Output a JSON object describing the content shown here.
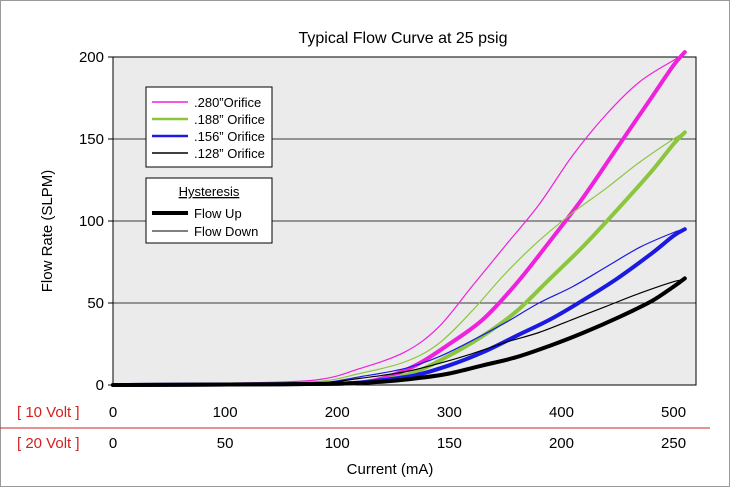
{
  "chart_data": {
    "type": "line",
    "title": "Typical Flow Curve at 25 psig",
    "xlabel": "Current (mA)",
    "ylabel": "Flow Rate (SLPM)",
    "xlim": [
      0,
      520
    ],
    "ylim": [
      0,
      200
    ],
    "grid": "horizontal",
    "plot_background": "#ebebeb",
    "x_ticks": [
      0,
      100,
      200,
      300,
      400,
      500
    ],
    "y_ticks": [
      0,
      50,
      100,
      150,
      200
    ],
    "secondary_axes": [
      {
        "label": "[ 10 Volt ]",
        "ticks": [
          "0",
          "100",
          "200",
          "300",
          "400",
          "500"
        ],
        "color": "#d32020"
      },
      {
        "label": "[ 20 Volt ]",
        "ticks": [
          "0",
          "50",
          "100",
          "150",
          "200",
          "250"
        ],
        "color": "#d32020"
      }
    ],
    "legend_orifice": {
      "position": "top-left",
      "entries": [
        {
          "label": ".280”Orifice",
          "color": "#ee22dd"
        },
        {
          "label": ".188” Orifice",
          "color": "#8cc63f"
        },
        {
          "label": ".156” Orifice",
          "color": "#1a1ae0"
        },
        {
          "label": ".128” Orifice",
          "color": "#000000"
        }
      ]
    },
    "legend_hysteresis": {
      "title": "Hysteresis",
      "entries": [
        {
          "label": "Flow Up",
          "style": "thick"
        },
        {
          "label": "Flow Down",
          "style": "thin"
        }
      ]
    },
    "series": [
      {
        "orifice": ".280",
        "direction": "down",
        "color": "#ee22dd",
        "points": [
          [
            0,
            0
          ],
          [
            100,
            1
          ],
          [
            180,
            3
          ],
          [
            220,
            10
          ],
          [
            260,
            20
          ],
          [
            290,
            35
          ],
          [
            320,
            60
          ],
          [
            350,
            85
          ],
          [
            380,
            110
          ],
          [
            410,
            140
          ],
          [
            440,
            165
          ],
          [
            470,
            185
          ],
          [
            500,
            198
          ],
          [
            510,
            202
          ]
        ]
      },
      {
        "orifice": ".280",
        "direction": "up",
        "color": "#ee22dd",
        "points": [
          [
            0,
            0
          ],
          [
            150,
            0.5
          ],
          [
            210,
            1
          ],
          [
            240,
            4
          ],
          [
            270,
            12
          ],
          [
            300,
            25
          ],
          [
            330,
            40
          ],
          [
            360,
            62
          ],
          [
            390,
            88
          ],
          [
            420,
            115
          ],
          [
            450,
            145
          ],
          [
            480,
            175
          ],
          [
            500,
            195
          ],
          [
            510,
            203
          ]
        ]
      },
      {
        "orifice": ".188",
        "direction": "down",
        "color": "#8cc63f",
        "points": [
          [
            0,
            0
          ],
          [
            100,
            1
          ],
          [
            180,
            2
          ],
          [
            220,
            7
          ],
          [
            260,
            14
          ],
          [
            290,
            25
          ],
          [
            320,
            45
          ],
          [
            350,
            68
          ],
          [
            380,
            88
          ],
          [
            410,
            105
          ],
          [
            440,
            120
          ],
          [
            470,
            136
          ],
          [
            500,
            150
          ],
          [
            510,
            154
          ]
        ]
      },
      {
        "orifice": ".188",
        "direction": "up",
        "color": "#8cc63f",
        "points": [
          [
            0,
            0
          ],
          [
            150,
            0.5
          ],
          [
            210,
            1
          ],
          [
            240,
            3
          ],
          [
            270,
            8
          ],
          [
            300,
            18
          ],
          [
            330,
            30
          ],
          [
            360,
            45
          ],
          [
            390,
            65
          ],
          [
            420,
            85
          ],
          [
            450,
            107
          ],
          [
            480,
            130
          ],
          [
            500,
            147
          ],
          [
            510,
            154
          ]
        ]
      },
      {
        "orifice": ".156",
        "direction": "down",
        "color": "#1a1ae0",
        "points": [
          [
            0,
            0
          ],
          [
            100,
            0.5
          ],
          [
            180,
            1
          ],
          [
            220,
            5
          ],
          [
            260,
            10
          ],
          [
            290,
            17
          ],
          [
            320,
            27
          ],
          [
            350,
            38
          ],
          [
            380,
            50
          ],
          [
            410,
            60
          ],
          [
            440,
            72
          ],
          [
            470,
            84
          ],
          [
            500,
            93
          ],
          [
            510,
            95
          ]
        ]
      },
      {
        "orifice": ".156",
        "direction": "up",
        "color": "#1a1ae0",
        "points": [
          [
            0,
            0
          ],
          [
            150,
            0.5
          ],
          [
            210,
            1
          ],
          [
            240,
            3
          ],
          [
            270,
            6
          ],
          [
            300,
            12
          ],
          [
            330,
            20
          ],
          [
            360,
            30
          ],
          [
            390,
            40
          ],
          [
            420,
            52
          ],
          [
            450,
            65
          ],
          [
            480,
            80
          ],
          [
            500,
            91
          ],
          [
            510,
            95
          ]
        ]
      },
      {
        "orifice": ".128",
        "direction": "down",
        "color": "#000000",
        "points": [
          [
            0,
            0
          ],
          [
            100,
            0.5
          ],
          [
            180,
            1
          ],
          [
            220,
            4
          ],
          [
            260,
            8
          ],
          [
            290,
            13
          ],
          [
            320,
            19
          ],
          [
            350,
            26
          ],
          [
            380,
            32
          ],
          [
            410,
            40
          ],
          [
            440,
            48
          ],
          [
            470,
            56
          ],
          [
            500,
            63
          ],
          [
            510,
            64
          ]
        ]
      },
      {
        "orifice": ".128",
        "direction": "up",
        "color": "#000000",
        "points": [
          [
            0,
            0
          ],
          [
            150,
            0.5
          ],
          [
            210,
            1
          ],
          [
            240,
            2
          ],
          [
            270,
            4
          ],
          [
            300,
            7
          ],
          [
            330,
            12
          ],
          [
            360,
            17
          ],
          [
            390,
            24
          ],
          [
            420,
            32
          ],
          [
            450,
            41
          ],
          [
            480,
            51
          ],
          [
            500,
            60
          ],
          [
            510,
            65
          ]
        ]
      }
    ]
  }
}
